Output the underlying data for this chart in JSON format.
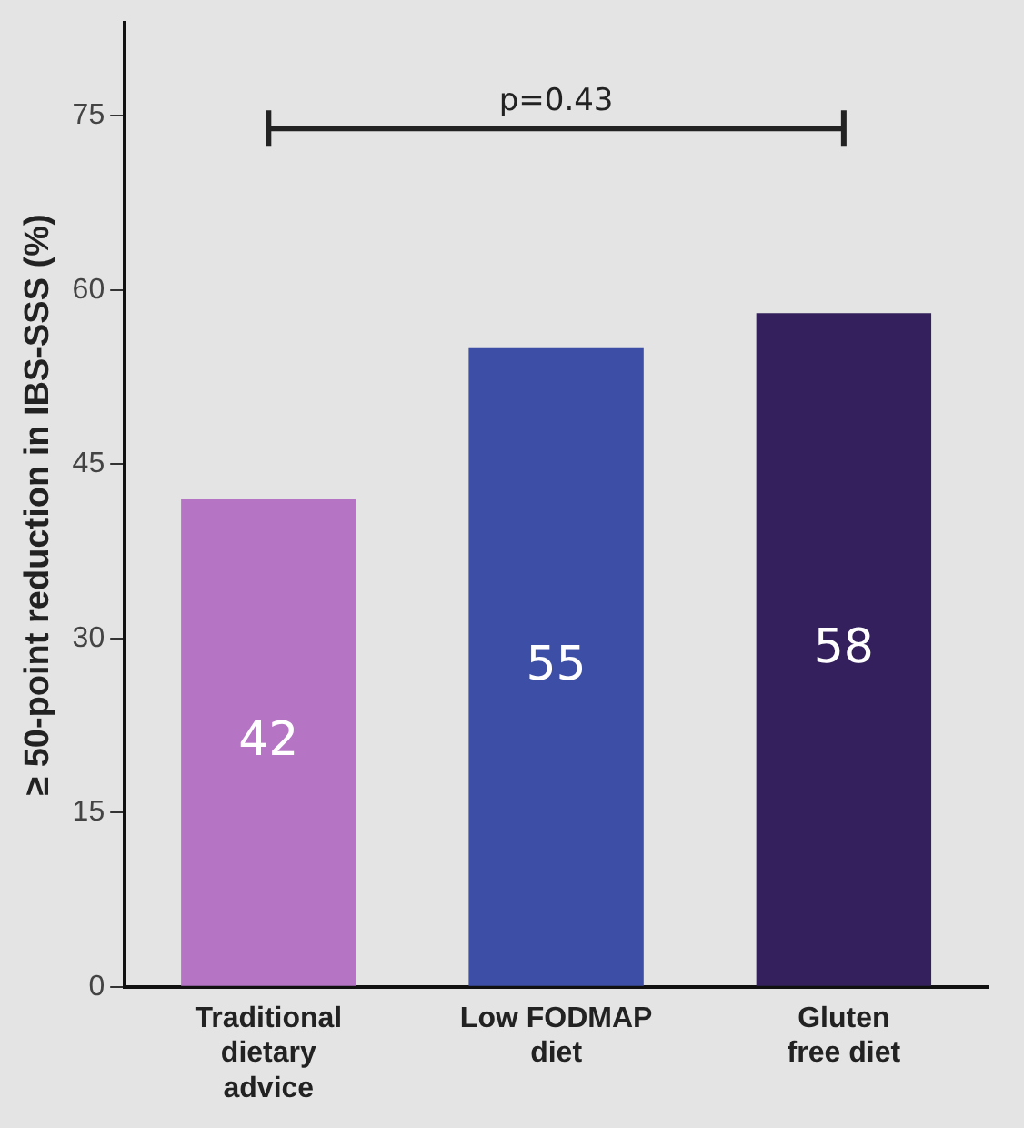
{
  "chart_data": {
    "type": "bar",
    "ylabel": "≥ 50-point reduction in IBS-SSS (%)",
    "categories": [
      "Traditional dietary advice",
      "Low FODMAP diet",
      "Gluten free diet"
    ],
    "values": [
      42,
      55,
      58
    ],
    "colors": [
      "#b574c4",
      "#3d4ea6",
      "#33205c"
    ],
    "ylim": [
      0,
      83
    ],
    "yticks": [
      0,
      15,
      30,
      45,
      60,
      75
    ],
    "grid": false,
    "data_labels": true,
    "annotations": [
      "p=0.43"
    ]
  }
}
